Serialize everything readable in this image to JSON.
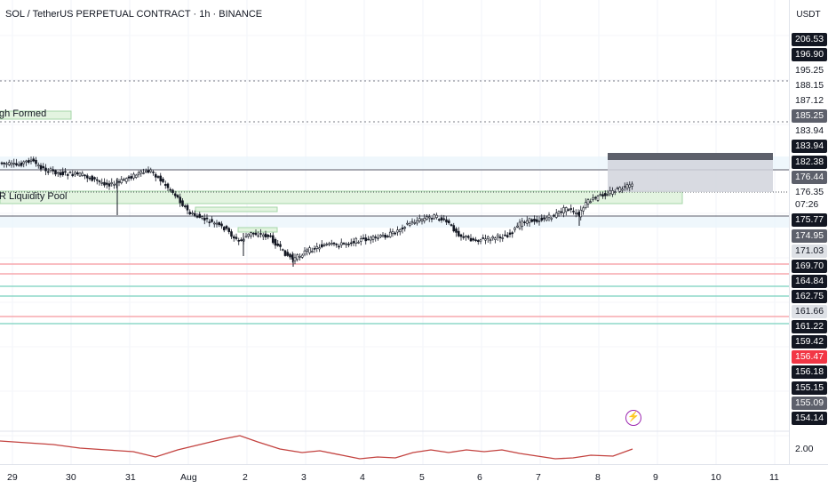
{
  "header": {
    "title": "SOL / TetherUS PERPETUAL CONTRACT · 1h · BINANCE",
    "currency": "USDT"
  },
  "annotations": {
    "high_formed": "gh Formed",
    "liquidity_pool": "R Liquidity Pool"
  },
  "icons": [
    "lightning-icon"
  ],
  "colors": {
    "candle": "#131722",
    "green_zone": "#e3f4e0",
    "green_zone_border": "#a5d6a7",
    "red_line": "#f7a8ae",
    "teal_line": "#8ed8c8",
    "gray_line": "#787b86",
    "oscillator": "#c3423f",
    "badge_dark": "#131722",
    "badge_gray": "#5d606b",
    "badge_red": "#f23645",
    "badge_light": "#dee1e6"
  },
  "price_scale": {
    "labels": [
      {
        "text": "206.53",
        "style": "dark"
      },
      {
        "text": "196.90",
        "style": "dark"
      },
      {
        "text": "195.25",
        "style": "plain"
      },
      {
        "text": "188.15",
        "style": "plain"
      },
      {
        "text": "187.12",
        "style": "plain"
      },
      {
        "text": "185.25",
        "style": "gray"
      },
      {
        "text": "183.94",
        "style": "plain"
      },
      {
        "text": "183.94",
        "style": "dark"
      },
      {
        "text": "182.38",
        "style": "dark"
      },
      {
        "text": "176.44",
        "style": "gray"
      },
      {
        "text": "176.35",
        "style": "plain"
      },
      {
        "text": "07:26",
        "style": "plain"
      },
      {
        "text": "175.77",
        "style": "dark"
      },
      {
        "text": "174.95",
        "style": "gray"
      },
      {
        "text": "171.03",
        "style": "light"
      },
      {
        "text": "169.70",
        "style": "dark"
      },
      {
        "text": "164.84",
        "style": "dark"
      },
      {
        "text": "162.75",
        "style": "dark"
      },
      {
        "text": "161.66",
        "style": "light"
      },
      {
        "text": "161.22",
        "style": "dark"
      },
      {
        "text": "159.42",
        "style": "dark"
      },
      {
        "text": "156.47",
        "style": "red"
      },
      {
        "text": "156.18",
        "style": "dark"
      },
      {
        "text": "155.15",
        "style": "dark"
      },
      {
        "text": "155.09",
        "style": "gray"
      },
      {
        "text": "154.14",
        "style": "dark"
      },
      {
        "text": "2.00",
        "style": "plain"
      }
    ]
  },
  "time_axis": {
    "labels": [
      "29",
      "30",
      "31",
      "Aug",
      "2",
      "3",
      "4",
      "5",
      "6",
      "7",
      "8",
      "9",
      "10",
      "11"
    ]
  }
}
